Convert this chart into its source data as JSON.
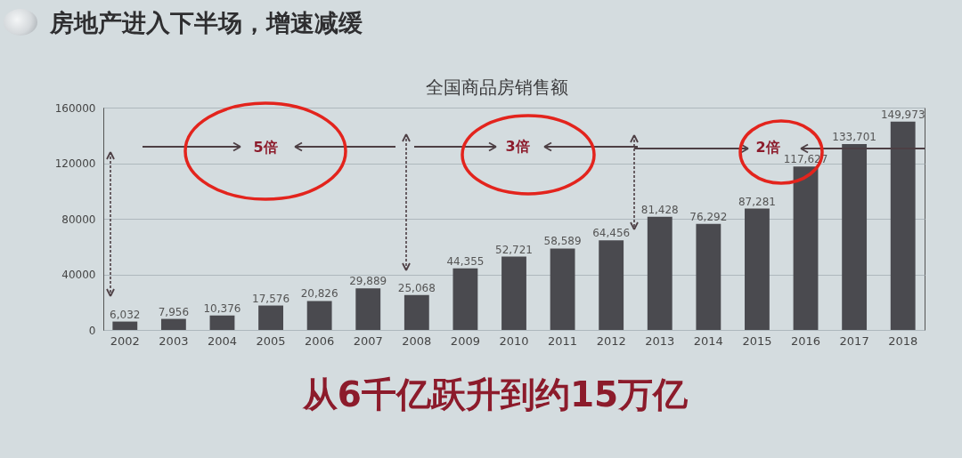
{
  "chart_data": {
    "type": "bar",
    "title": "房地产进入下半场，增速减缓",
    "subtitle": "全国商品房销售额",
    "categories": [
      "2002",
      "2003",
      "2004",
      "2005",
      "2006",
      "2007",
      "2008",
      "2009",
      "2010",
      "2011",
      "2012",
      "2013",
      "2014",
      "2015",
      "2016",
      "2017",
      "2018"
    ],
    "values": [
      6032,
      7956,
      10376,
      17576,
      20826,
      29889,
      25068,
      44355,
      52721,
      58589,
      64456,
      81428,
      76292,
      87281,
      117627,
      133701,
      149973
    ],
    "value_labels": [
      "6,032",
      "7,956",
      "10,376",
      "17,576",
      "20,826",
      "29,889",
      "25,068",
      "44,355",
      "52,721",
      "58,589",
      "64,456",
      "81,428",
      "76,292",
      "87,281",
      "117,627",
      "133,701",
      "149,973"
    ],
    "color": "#4a4a4f",
    "ylim": [
      0,
      160000
    ],
    "yticks": [
      0,
      40000,
      80000,
      120000,
      160000
    ],
    "grid": "y",
    "annotations": [
      "5倍",
      "3倍",
      "2倍",
      "从6千亿跃升到约15万亿"
    ]
  }
}
